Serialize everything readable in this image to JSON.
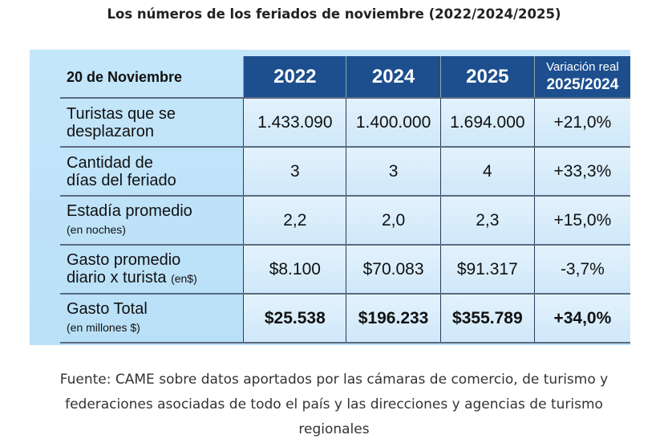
{
  "title": "Los números de los feriados de noviembre (2022/2024/2025)",
  "table": {
    "corner": "20 de Noviembre",
    "columns": [
      "2022",
      "2024",
      "2025"
    ],
    "variation_header": [
      "Variación real",
      "2025/2024"
    ],
    "rows": [
      {
        "label": "Turistas que se",
        "label2": "desplazaron",
        "label2_small": "",
        "values": [
          "1.433.090",
          "1.400.000",
          "1.694.000",
          "+21,0%"
        ]
      },
      {
        "label": "Cantidad de",
        "label2": "días del feriado",
        "label2_small": "",
        "values": [
          "3",
          "3",
          "4",
          "+33,3%"
        ]
      },
      {
        "label": "Estadía promedio",
        "label2": "",
        "label2_small": "(en noches)",
        "values": [
          "2,2",
          "2,0",
          "2,3",
          "+15,0%"
        ]
      },
      {
        "label": "Gasto promedio",
        "label2": "diario x turista",
        "label2_small": "(en$)",
        "values": [
          "$8.100",
          "$70.083",
          "$91.317",
          "-3,7%"
        ]
      },
      {
        "label": "Gasto Total",
        "label2": "",
        "label2_small": "(en millones $)",
        "values": [
          "$25.538",
          "$196.233",
          "$355.789",
          "+34,0%"
        ]
      }
    ]
  },
  "source": [
    "Fuente: CAME sobre datos aportados por las cámaras de comercio, de turismo y",
    "federaciones asociadas de todo el país y las direcciones y agencias de turismo",
    "regionales"
  ],
  "colors": {
    "header": "#1d4f8f",
    "panel": "#c4e6fa"
  }
}
